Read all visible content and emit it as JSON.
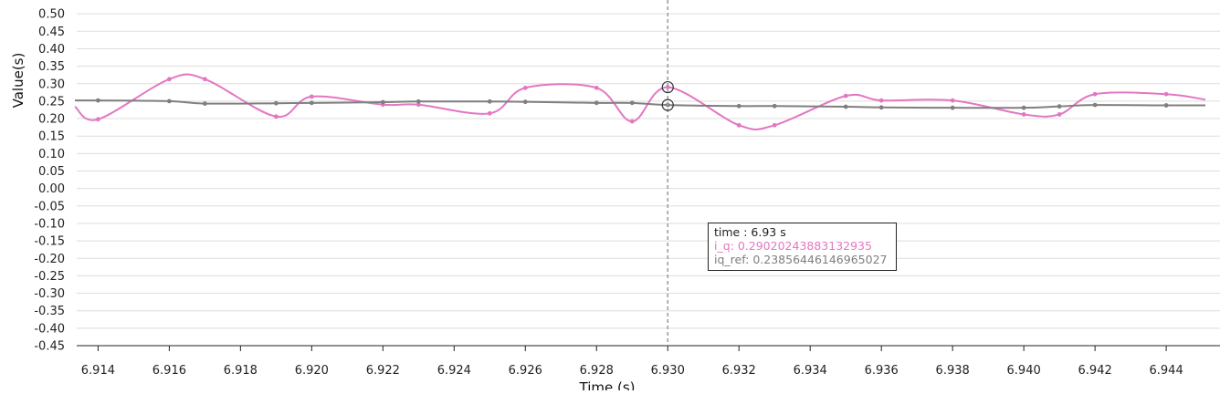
{
  "chart_data": {
    "type": "line",
    "xlabel": "Time (s)",
    "ylabel": "Value(s)",
    "xlim": [
      6.9134,
      6.9451
    ],
    "ylim": [
      -0.45,
      0.55
    ],
    "x_ticks": [
      "6.914",
      "6.916",
      "6.918",
      "6.920",
      "6.922",
      "6.924",
      "6.926",
      "6.928",
      "6.930",
      "6.932",
      "6.934",
      "6.936",
      "6.938",
      "6.940",
      "6.942",
      "6.944"
    ],
    "y_ticks": [
      "0.50",
      "0.45",
      "0.40",
      "0.35",
      "0.30",
      "0.25",
      "0.20",
      "0.15",
      "0.10",
      "0.05",
      "0.00",
      "-0.05",
      "-0.10",
      "-0.15",
      "-0.20",
      "-0.25",
      "-0.30",
      "-0.35",
      "-0.40",
      "-0.45"
    ],
    "grid": "horizontal",
    "series": [
      {
        "name": "i_q",
        "color": "#e377c2",
        "x": [
          6.914,
          6.916,
          6.917,
          6.919,
          6.92,
          6.922,
          6.923,
          6.925,
          6.926,
          6.928,
          6.929,
          6.93,
          6.932,
          6.933,
          6.935,
          6.936,
          6.938,
          6.94,
          6.941,
          6.942,
          6.944
        ],
        "y": [
          0.198,
          0.313,
          0.313,
          0.206,
          0.263,
          0.24,
          0.24,
          0.215,
          0.288,
          0.288,
          0.192,
          0.29,
          0.181,
          0.181,
          0.265,
          0.252,
          0.252,
          0.212,
          0.212,
          0.27,
          0.27
        ]
      },
      {
        "name": "iq_ref",
        "color": "#7f7f7f",
        "x": [
          6.914,
          6.916,
          6.917,
          6.919,
          6.92,
          6.922,
          6.923,
          6.925,
          6.926,
          6.928,
          6.929,
          6.93,
          6.932,
          6.933,
          6.935,
          6.936,
          6.938,
          6.94,
          6.941,
          6.942,
          6.944
        ],
        "y": [
          0.252,
          0.25,
          0.243,
          0.244,
          0.245,
          0.247,
          0.249,
          0.249,
          0.248,
          0.245,
          0.245,
          0.239,
          0.236,
          0.236,
          0.234,
          0.232,
          0.231,
          0.231,
          0.235,
          0.239,
          0.238
        ]
      }
    ],
    "crosshair_x": 6.93,
    "tooltip": {
      "time_line": "time : 6.93 s",
      "iq_line": "i_q: 0.29020243883132935",
      "ref_line": "iq_ref: 0.23856446146965027"
    }
  }
}
